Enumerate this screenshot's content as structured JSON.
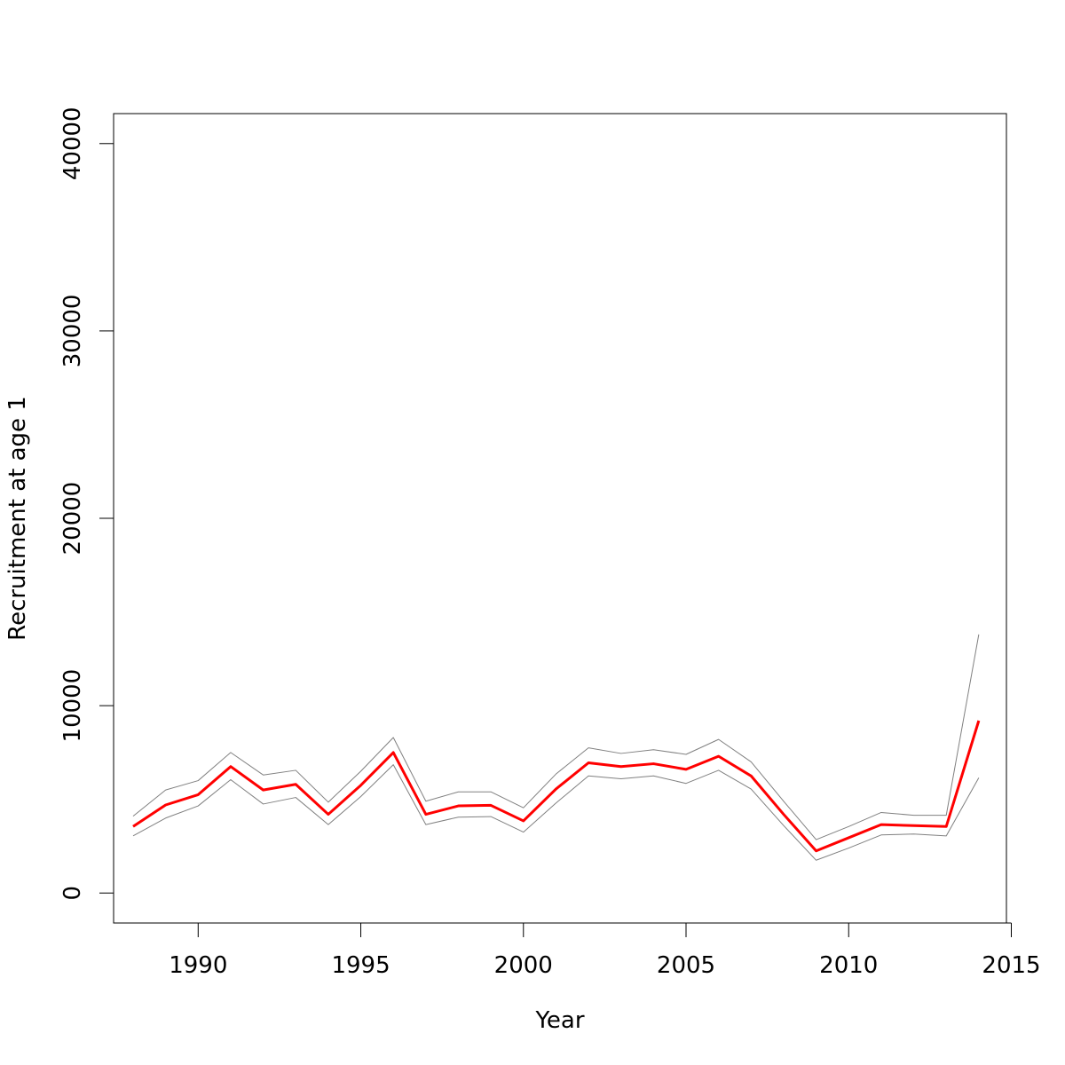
{
  "chart_data": {
    "type": "line",
    "title": "",
    "xlabel": "Year",
    "ylabel": "Recruitment at age 1",
    "xlim": [
      1987.4,
      2014.85
    ],
    "ylim": [
      -1600,
      41600
    ],
    "x_ticks": [
      1990,
      1995,
      2000,
      2005,
      2010,
      2015
    ],
    "y_ticks": [
      0,
      10000,
      20000,
      30000,
      40000
    ],
    "x_tick_labels": [
      "1990",
      "1995",
      "2000",
      "2005",
      "2010",
      "2015"
    ],
    "y_tick_labels": [
      "0",
      "10000",
      "20000",
      "30000",
      "40000"
    ],
    "grid": false,
    "legend": "none",
    "x": [
      1988,
      1989,
      1990,
      1991,
      1992,
      1993,
      1994,
      1995,
      1996,
      1997,
      1998,
      1999,
      2000,
      2001,
      2002,
      2003,
      2004,
      2005,
      2006,
      2007,
      2008,
      2009,
      2010,
      2011,
      2012,
      2013,
      2014
    ],
    "series": [
      {
        "role": "estimate",
        "color": "#ff0000",
        "values": [
          3550,
          4700,
          5250,
          6750,
          5500,
          5800,
          4200,
          5750,
          7500,
          4200,
          4650,
          4680,
          3850,
          5550,
          6950,
          6750,
          6900,
          6600,
          7300,
          6250,
          4200,
          2250,
          2950,
          3650,
          3600,
          3550,
          9200
        ]
      },
      {
        "role": "upper",
        "color": "#808080",
        "values": [
          4100,
          5500,
          6000,
          7500,
          6300,
          6550,
          4850,
          6500,
          8300,
          4900,
          5400,
          5400,
          4550,
          6350,
          7750,
          7450,
          7650,
          7400,
          8200,
          7000,
          4900,
          2850,
          3550,
          4300,
          4150,
          4150,
          13800
        ]
      },
      {
        "role": "lower",
        "color": "#808080",
        "values": [
          3050,
          4000,
          4650,
          6050,
          4750,
          5100,
          3650,
          5150,
          6850,
          3650,
          4050,
          4080,
          3250,
          4800,
          6250,
          6100,
          6250,
          5850,
          6550,
          5550,
          3600,
          1750,
          2400,
          3100,
          3150,
          3050,
          6150
        ]
      }
    ]
  }
}
